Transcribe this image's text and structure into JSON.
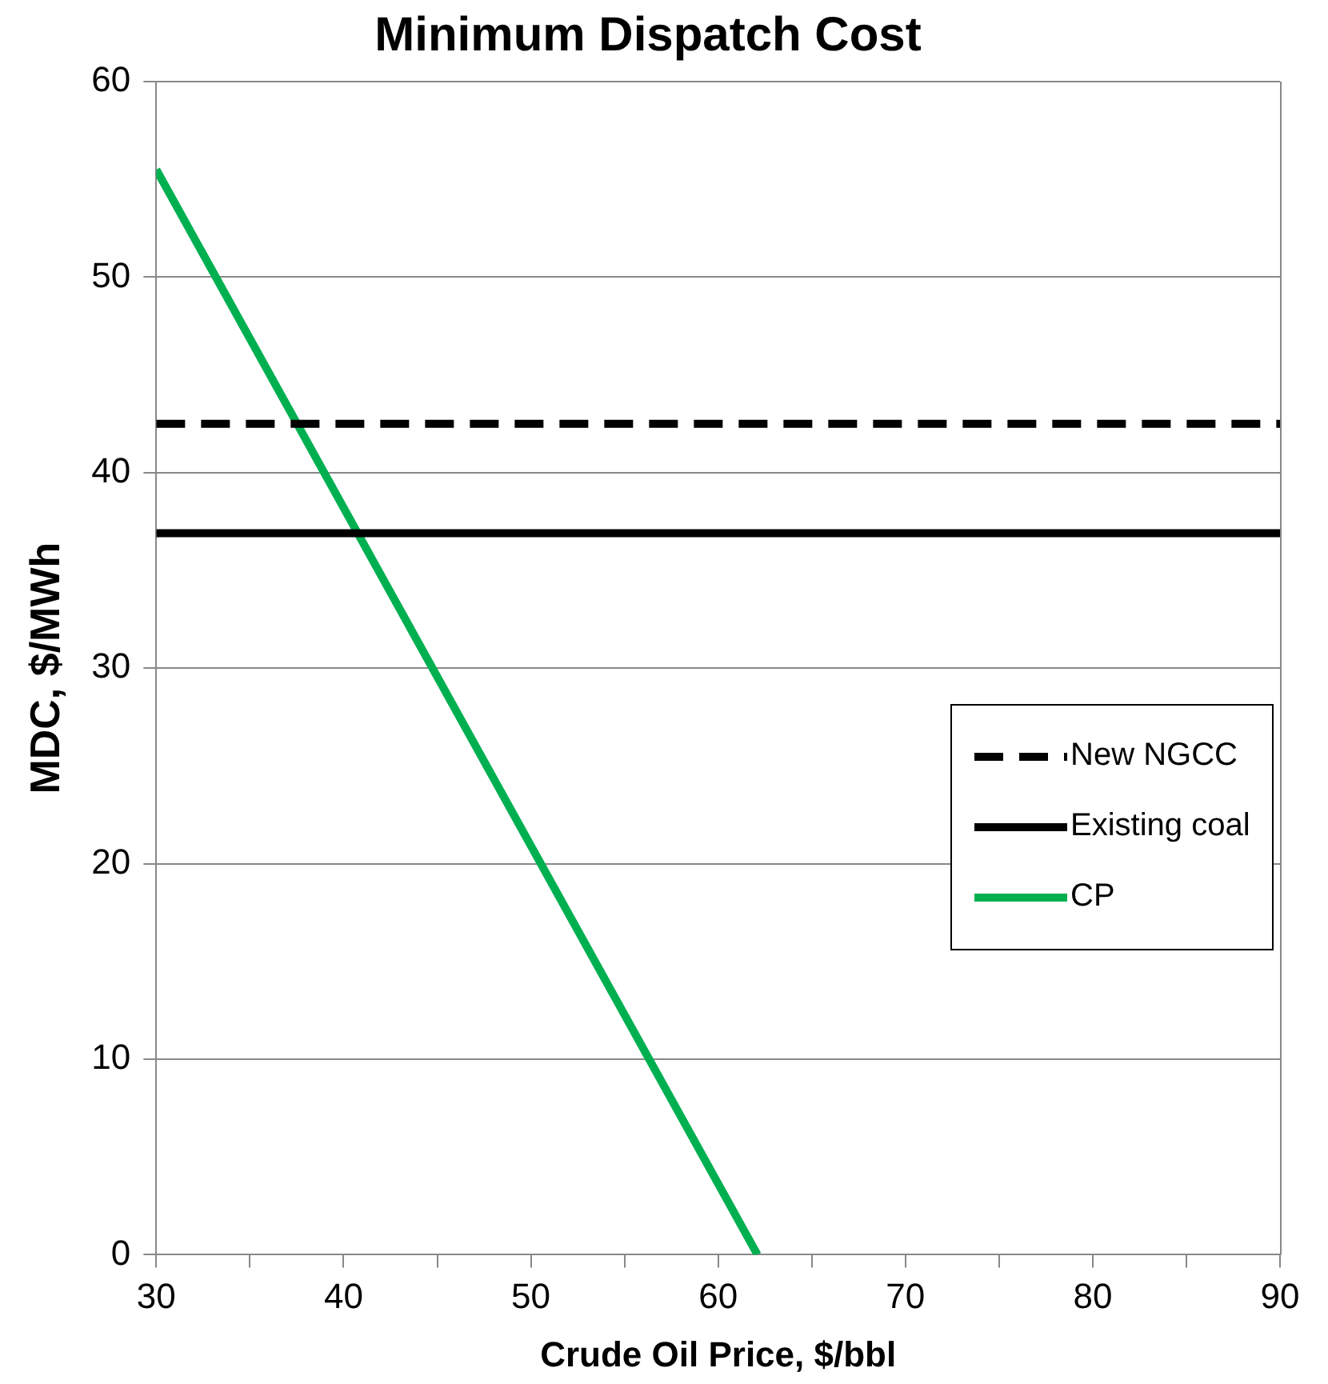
{
  "chart_data": {
    "type": "line",
    "title": "Minimum Dispatch Cost",
    "xlabel": "Crude Oil Price, $/bbl",
    "ylabel": "MDC, $/MWh",
    "xlim": [
      30,
      90
    ],
    "xticks": [
      30,
      {
        "value": 35,
        "label": null
      },
      40,
      {
        "value": 45,
        "label": null
      },
      50,
      {
        "value": 55,
        "label": null
      },
      60,
      {
        "value": 65,
        "label": null
      },
      70,
      {
        "value": 75,
        "label": null
      },
      80,
      {
        "value": 85,
        "label": null
      },
      90
    ],
    "ylim": [
      0,
      60
    ],
    "yticks": [
      0,
      10,
      20,
      30,
      40,
      50,
      60
    ],
    "grid": "y",
    "legend": "right",
    "marker": "none",
    "series": [
      {
        "name": "New NGCC",
        "color": "#000000",
        "line_style": "dashed",
        "x": [
          30,
          90
        ],
        "values": [
          42.5,
          42.5
        ]
      },
      {
        "name": "Existing coal",
        "color": "#000000",
        "line_style": "solid",
        "x": [
          30,
          90
        ],
        "values": [
          36.9,
          36.9
        ]
      },
      {
        "name": "CP",
        "color": "#00b050",
        "line_style": "solid",
        "x": [
          30,
          62.1
        ],
        "values": [
          55.5,
          0
        ]
      }
    ]
  }
}
